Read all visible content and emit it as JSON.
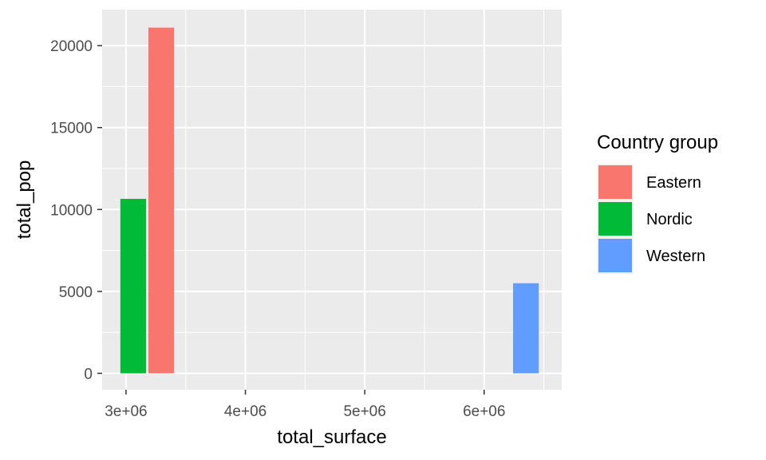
{
  "chart_data": {
    "type": "bar",
    "xlabel": "total_surface",
    "ylabel": "total_pop",
    "xlim": [
      2800000,
      6650000
    ],
    "ylim": [
      -1000,
      22200
    ],
    "x_ticks": [
      3000000,
      4000000,
      5000000,
      6000000
    ],
    "x_tick_labels": [
      "3e+06",
      "4e+06",
      "5e+06",
      "6e+06"
    ],
    "y_ticks": [
      0,
      5000,
      10000,
      15000,
      20000
    ],
    "y_tick_labels": [
      "0",
      "5000",
      "10000",
      "15000",
      "20000"
    ],
    "bar_width": 215000,
    "grid": true,
    "legend": {
      "title": "Country group",
      "placement": "right",
      "entries": [
        {
          "name": "Eastern",
          "color": "#F8766D"
        },
        {
          "name": "Nordic",
          "color": "#00BA38"
        },
        {
          "name": "Western",
          "color": "#619CFF"
        }
      ]
    },
    "series": [
      {
        "name": "Nordic",
        "color": "#00BA38",
        "x": 3060000,
        "y": 10650
      },
      {
        "name": "Eastern",
        "color": "#F8766D",
        "x": 3295000,
        "y": 21100
      },
      {
        "name": "Western",
        "color": "#619CFF",
        "x": 6350000,
        "y": 5500
      }
    ]
  }
}
